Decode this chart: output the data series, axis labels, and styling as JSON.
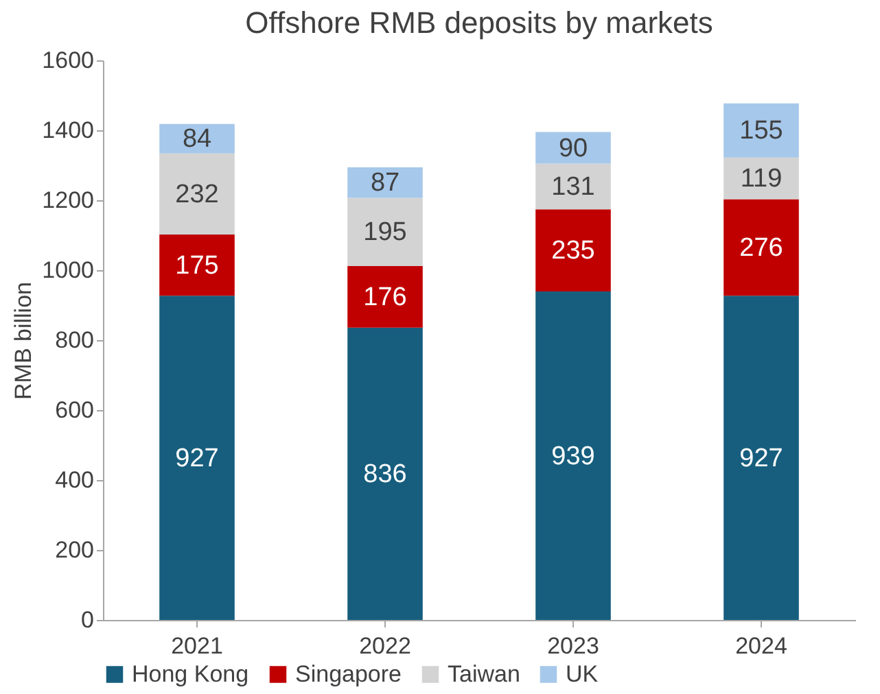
{
  "chart_data": {
    "type": "bar",
    "title": "Offshore RMB deposits by markets",
    "ylabel": "RMB billion",
    "categories": [
      "2021",
      "2022",
      "2023",
      "2024"
    ],
    "stacked": true,
    "data_labels": true,
    "legend": "bottom",
    "grid": false,
    "ylim": [
      0,
      1600
    ],
    "yticks": [
      0,
      200,
      400,
      600,
      800,
      1000,
      1200,
      1400,
      1600
    ],
    "series": [
      {
        "name": "Hong Kong",
        "color": "#175e7e",
        "values": [
          927,
          836,
          939,
          927
        ]
      },
      {
        "name": "Singapore",
        "color": "#c00000",
        "values": [
          175,
          176,
          235,
          276
        ]
      },
      {
        "name": "Taiwan",
        "color": "#d3d3d3",
        "values": [
          232,
          195,
          131,
          119
        ]
      },
      {
        "name": "UK",
        "color": "#a6c8ea",
        "values": [
          84,
          87,
          90,
          155
        ]
      }
    ]
  }
}
